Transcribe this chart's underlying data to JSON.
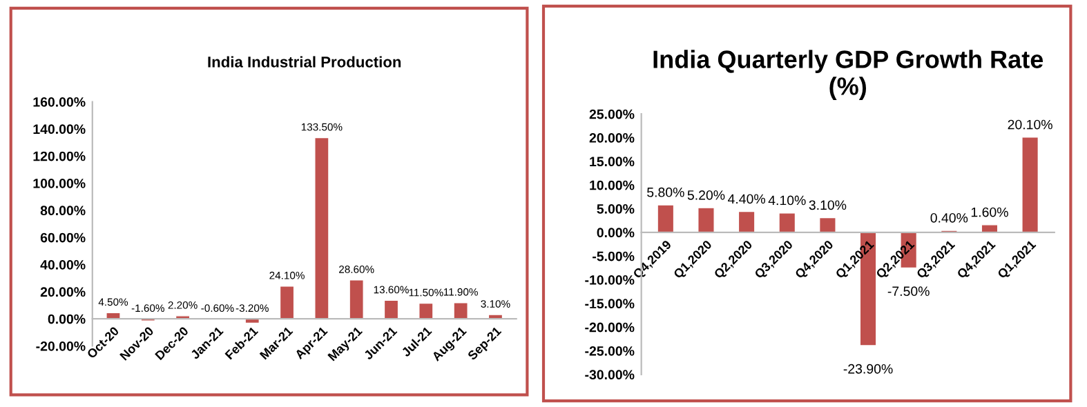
{
  "chart_data": [
    {
      "type": "bar",
      "title": "India Industrial Production",
      "categories": [
        "Oct-20",
        "Nov-20",
        "Dec-20",
        "Jan-21",
        "Feb-21",
        "Mar-21",
        "Apr-21",
        "May-21",
        "Jun-21",
        "Jul-21",
        "Aug-21",
        "Sep-21"
      ],
      "values": [
        4.5,
        -1.6,
        2.2,
        -0.6,
        -3.2,
        24.1,
        133.5,
        28.6,
        13.6,
        11.5,
        11.9,
        3.1
      ],
      "value_labels": [
        "4.50%",
        "-1.60%",
        "2.20%",
        "-0.60%",
        "-3.20%",
        "24.10%",
        "133.50%",
        "28.60%",
        "13.60%",
        "11.50%",
        "11.90%",
        "3.10%"
      ],
      "color": "#c0504d",
      "ylim": [
        -20,
        160
      ],
      "yticks": [
        {
          "value": -20,
          "label": "-20.00%"
        },
        {
          "value": 0,
          "label": "0.00%"
        },
        {
          "value": 20,
          "label": "20.00%"
        },
        {
          "value": 40,
          "label": "40.00%"
        },
        {
          "value": 60,
          "label": "60.00%"
        },
        {
          "value": 80,
          "label": "80.00%"
        },
        {
          "value": 100,
          "label": "100.00%"
        },
        {
          "value": 120,
          "label": "120.00%"
        },
        {
          "value": 140,
          "label": "140.00%"
        },
        {
          "value": 160,
          "label": "160.00%"
        }
      ],
      "grid": false,
      "legend": false
    },
    {
      "type": "bar",
      "title": "India Quarterly GDP Growth Rate\n(%)",
      "categories": [
        "Q4,2019",
        "Q1,2020",
        "Q2,2020",
        "Q3,2020",
        "Q4,2020",
        "Q1,2021",
        "Q2,2021",
        "Q3,2021",
        "Q4,2021",
        "Q1,2021"
      ],
      "values": [
        5.8,
        5.2,
        4.4,
        4.1,
        3.1,
        -23.9,
        -7.5,
        0.4,
        1.6,
        20.1
      ],
      "value_labels": [
        "5.80%",
        "5.20%",
        "4.40%",
        "4.10%",
        "3.10%",
        "-23.90%",
        "-7.50%",
        "0.40%",
        "1.60%",
        "20.10%"
      ],
      "color": "#c0504d",
      "ylim": [
        -30,
        25
      ],
      "yticks": [
        {
          "value": -30,
          "label": "-30.00%"
        },
        {
          "value": -25,
          "label": "-25.00%"
        },
        {
          "value": -20,
          "label": "-20.00%"
        },
        {
          "value": -15,
          "label": "-15.00%"
        },
        {
          "value": -10,
          "label": "-10.00%"
        },
        {
          "value": -5,
          "label": "-5.00%"
        },
        {
          "value": 0,
          "label": "0.00%"
        },
        {
          "value": 5,
          "label": "5.00%"
        },
        {
          "value": 10,
          "label": "10.00%"
        },
        {
          "value": 15,
          "label": "15.00%"
        },
        {
          "value": 20,
          "label": "20.00%"
        },
        {
          "value": 25,
          "label": "25.00%"
        }
      ],
      "grid": false,
      "legend": false
    }
  ]
}
